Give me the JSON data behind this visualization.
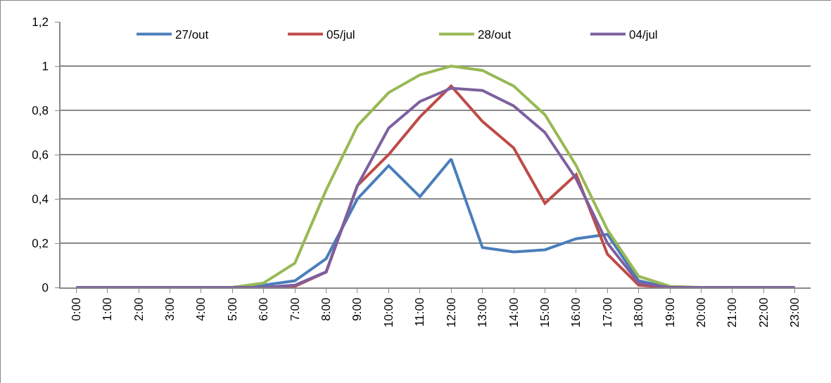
{
  "chart_data": {
    "type": "line",
    "categories": [
      "0:00",
      "1:00",
      "2:00",
      "3:00",
      "4:00",
      "5:00",
      "6:00",
      "7:00",
      "8:00",
      "9:00",
      "10:00",
      "11:00",
      "12:00",
      "13:00",
      "14:00",
      "15:00",
      "16:00",
      "17:00",
      "18:00",
      "19:00",
      "20:00",
      "21:00",
      "22:00",
      "23:00"
    ],
    "series": [
      {
        "name": "27/out",
        "color": "#4a7ebb",
        "values": [
          null,
          null,
          null,
          null,
          null,
          0,
          0.01,
          0.03,
          0.13,
          0.4,
          0.55,
          0.41,
          0.58,
          0.18,
          0.16,
          0.17,
          0.22,
          0.24,
          0.03,
          0,
          0,
          null,
          null,
          null
        ]
      },
      {
        "name": "05/jul",
        "color": "#be4b48",
        "values": [
          null,
          null,
          null,
          null,
          null,
          null,
          0,
          0.005,
          0.07,
          0.46,
          0.6,
          0.77,
          0.91,
          0.75,
          0.63,
          0.38,
          0.51,
          0.15,
          0.01,
          0,
          0,
          null,
          null,
          null
        ]
      },
      {
        "name": "28/out",
        "color": "#98b954",
        "values": [
          null,
          null,
          null,
          null,
          null,
          0,
          0.02,
          0.11,
          0.44,
          0.73,
          0.88,
          0.96,
          1,
          0.98,
          0.91,
          0.78,
          0.55,
          0.26,
          0.05,
          0.005,
          0,
          null,
          null,
          null
        ]
      },
      {
        "name": "04/jul",
        "color": "#7d60a0",
        "values": [
          0,
          0,
          0,
          0,
          0,
          0,
          0,
          0.01,
          0.07,
          0.46,
          0.72,
          0.84,
          0.9,
          0.89,
          0.82,
          0.7,
          0.49,
          0.2,
          0.02,
          0,
          0,
          0,
          0,
          0
        ]
      }
    ],
    "ylim": [
      0,
      1.2
    ],
    "yticks": [
      0,
      {
        "value": 0.2,
        "label": "0,2"
      },
      {
        "value": 0.4,
        "label": "0,4"
      },
      {
        "value": 0.6,
        "label": "0,6"
      },
      {
        "value": 0.8,
        "label": "0,8"
      },
      1,
      {
        "value": 1.2,
        "label": "1,2"
      }
    ],
    "grid": "y",
    "legend": "top",
    "marker": "none",
    "line_style": "solid"
  }
}
